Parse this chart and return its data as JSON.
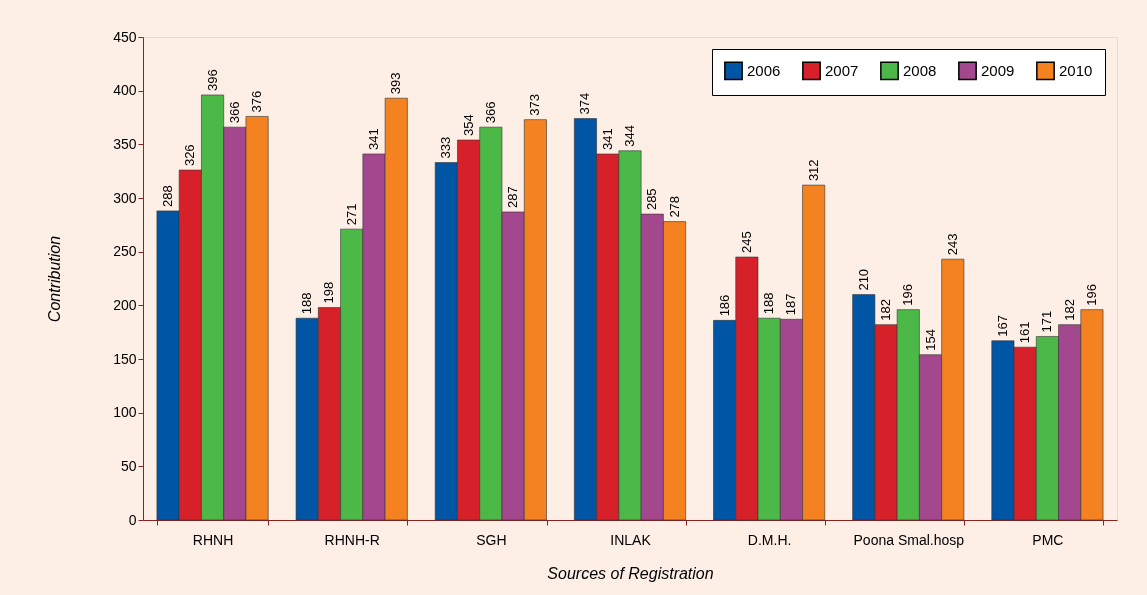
{
  "chart_data": {
    "type": "bar",
    "xlabel": "Sources of Registration",
    "ylabel": "Contribution",
    "categories": [
      "RHNH",
      "RHNH-R",
      "SGH",
      "INLAK",
      "D.M.H.",
      "Poona Smal.hosp",
      "PMC"
    ],
    "series": [
      {
        "name": "2006",
        "color": "#0055a5",
        "values": [
          288,
          188,
          333,
          374,
          186,
          210,
          167
        ]
      },
      {
        "name": "2007",
        "color": "#d7212a",
        "values": [
          326,
          198,
          354,
          341,
          245,
          182,
          161
        ]
      },
      {
        "name": "2008",
        "color": "#4cb848",
        "values": [
          396,
          271,
          366,
          344,
          188,
          196,
          171
        ]
      },
      {
        "name": "2009",
        "color": "#a3488e",
        "values": [
          366,
          341,
          287,
          285,
          187,
          154,
          182
        ]
      },
      {
        "name": "2010",
        "color": "#f58220",
        "values": [
          376,
          393,
          373,
          278,
          312,
          243,
          196
        ]
      }
    ],
    "ylim": [
      0,
      450
    ],
    "yticks": [
      0,
      50,
      100,
      150,
      200,
      250,
      300,
      350,
      400,
      450
    ],
    "grid": false,
    "legend": "top right",
    "data_labels": true
  }
}
